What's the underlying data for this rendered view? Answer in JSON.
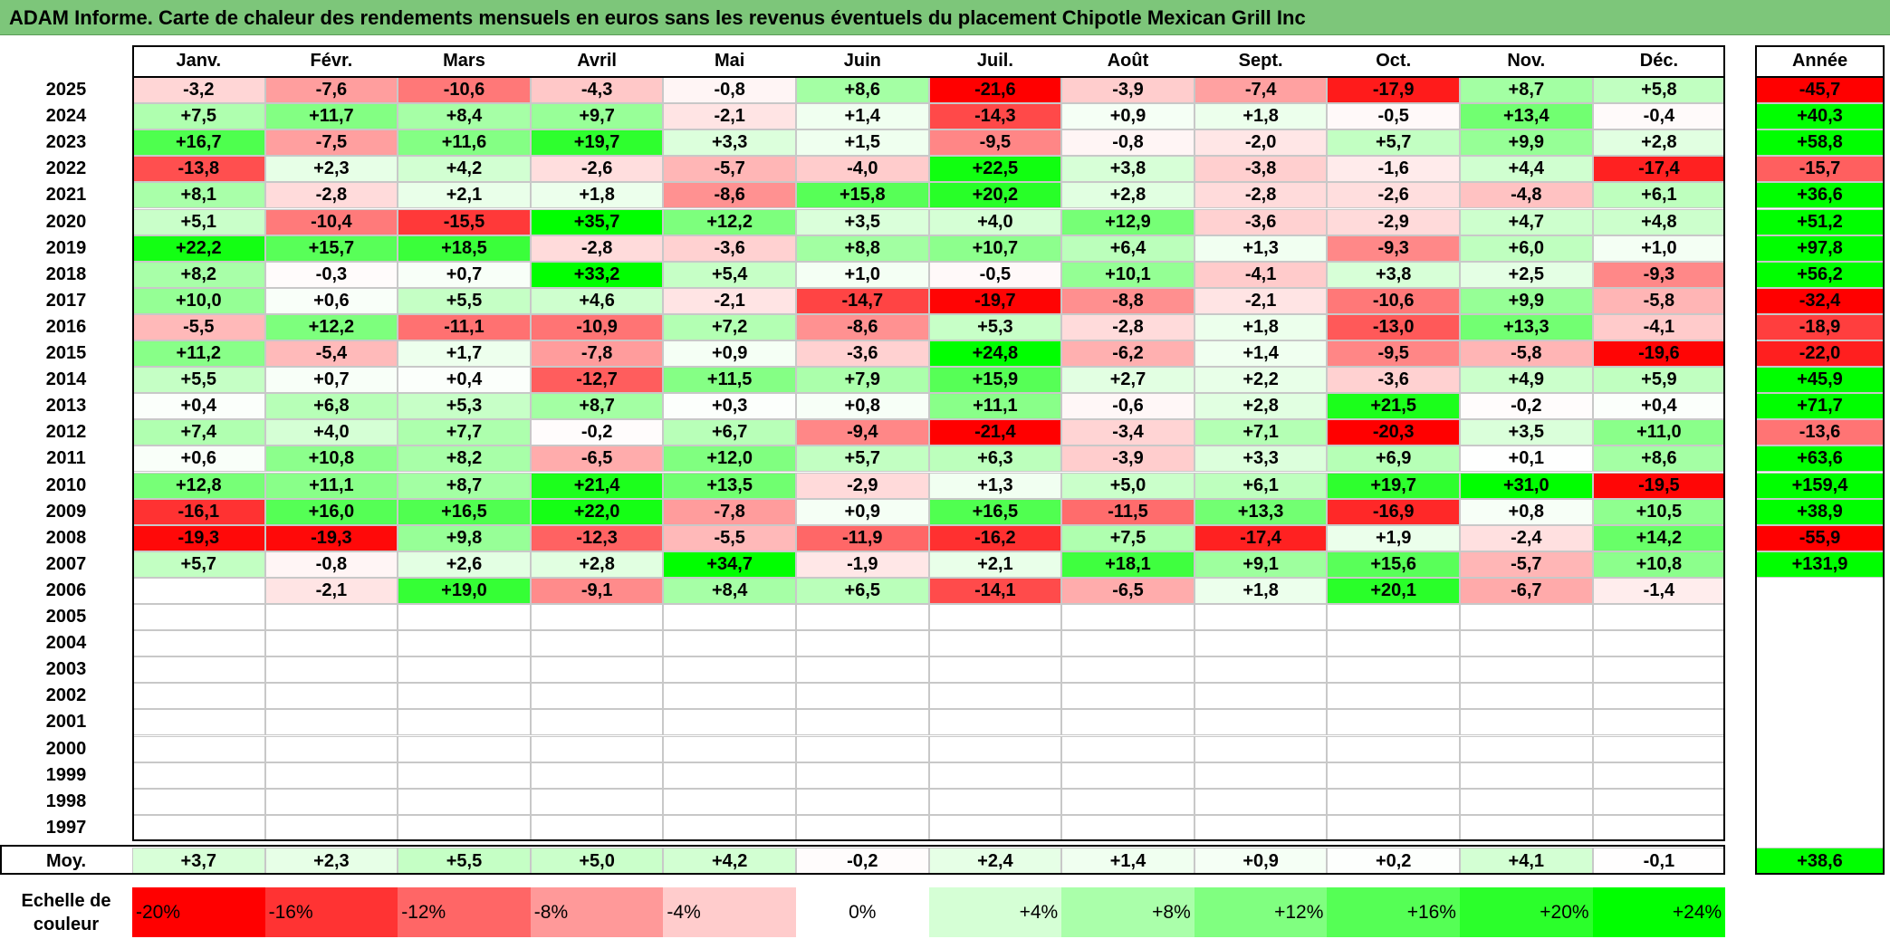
{
  "title": "ADAM Informe. Carte de chaleur des rendements mensuels en euros sans les revenus éventuels du placement Chipotle Mexican Grill Inc",
  "chart_data": {
    "type": "heatmap",
    "title": "ADAM Informe. Carte de chaleur des rendements mensuels en euros sans les revenus éventuels du placement Chipotle Mexican Grill Inc",
    "months": [
      "Janv.",
      "Févr.",
      "Mars",
      "Avril",
      "Mai",
      "Juin",
      "Juil.",
      "Août",
      "Sept.",
      "Oct.",
      "Nov.",
      "Déc."
    ],
    "year_header": "Année",
    "rows": [
      {
        "year": "2025",
        "values": [
          "-3,2",
          "-7,6",
          "-10,6",
          "-4,3",
          "-0,8",
          "+8,6",
          "-21,6",
          "-3,9",
          "-7,4",
          "-17,9",
          "+8,7",
          "+5,8"
        ],
        "annual": "-45,7"
      },
      {
        "year": "2024",
        "values": [
          "+7,5",
          "+11,7",
          "+8,4",
          "+9,7",
          "-2,1",
          "+1,4",
          "-14,3",
          "+0,9",
          "+1,8",
          "-0,5",
          "+13,4",
          "-0,4"
        ],
        "annual": "+40,3"
      },
      {
        "year": "2023",
        "values": [
          "+16,7",
          "-7,5",
          "+11,6",
          "+19,7",
          "+3,3",
          "+1,5",
          "-9,5",
          "-0,8",
          "-2,0",
          "+5,7",
          "+9,9",
          "+2,8"
        ],
        "annual": "+58,8"
      },
      {
        "year": "2022",
        "values": [
          "-13,8",
          "+2,3",
          "+4,2",
          "-2,6",
          "-5,7",
          "-4,0",
          "+22,5",
          "+3,8",
          "-3,8",
          "-1,6",
          "+4,4",
          "-17,4"
        ],
        "annual": "-15,7"
      },
      {
        "year": "2021",
        "values": [
          "+8,1",
          "-2,8",
          "+2,1",
          "+1,8",
          "-8,6",
          "+15,8",
          "+20,2",
          "+2,8",
          "-2,8",
          "-2,6",
          "-4,8",
          "+6,1"
        ],
        "annual": "+36,6"
      },
      {
        "year": "2020",
        "values": [
          "+5,1",
          "-10,4",
          "-15,5",
          "+35,7",
          "+12,2",
          "+3,5",
          "+4,0",
          "+12,9",
          "-3,6",
          "-2,9",
          "+4,7",
          "+4,8"
        ],
        "annual": "+51,2"
      },
      {
        "year": "2019",
        "values": [
          "+22,2",
          "+15,7",
          "+18,5",
          "-2,8",
          "-3,6",
          "+8,8",
          "+10,7",
          "+6,4",
          "+1,3",
          "-9,3",
          "+6,0",
          "+1,0"
        ],
        "annual": "+97,8"
      },
      {
        "year": "2018",
        "values": [
          "+8,2",
          "-0,3",
          "+0,7",
          "+33,2",
          "+5,4",
          "+1,0",
          "-0,5",
          "+10,1",
          "-4,1",
          "+3,8",
          "+2,5",
          "-9,3"
        ],
        "annual": "+56,2"
      },
      {
        "year": "2017",
        "values": [
          "+10,0",
          "+0,6",
          "+5,5",
          "+4,6",
          "-2,1",
          "-14,7",
          "-19,7",
          "-8,8",
          "-2,1",
          "-10,6",
          "+9,9",
          "-5,8"
        ],
        "annual": "-32,4"
      },
      {
        "year": "2016",
        "values": [
          "-5,5",
          "+12,2",
          "-11,1",
          "-10,9",
          "+7,2",
          "-8,6",
          "+5,3",
          "-2,8",
          "+1,8",
          "-13,0",
          "+13,3",
          "-4,1"
        ],
        "annual": "-18,9"
      },
      {
        "year": "2015",
        "values": [
          "+11,2",
          "-5,4",
          "+1,7",
          "-7,8",
          "+0,9",
          "-3,6",
          "+24,8",
          "-6,2",
          "+1,4",
          "-9,5",
          "-5,8",
          "-19,6"
        ],
        "annual": "-22,0"
      },
      {
        "year": "2014",
        "values": [
          "+5,5",
          "+0,7",
          "+0,4",
          "-12,7",
          "+11,5",
          "+7,9",
          "+15,9",
          "+2,7",
          "+2,2",
          "-3,6",
          "+4,9",
          "+5,9"
        ],
        "annual": "+45,9"
      },
      {
        "year": "2013",
        "values": [
          "+0,4",
          "+6,8",
          "+5,3",
          "+8,7",
          "+0,3",
          "+0,8",
          "+11,1",
          "-0,6",
          "+2,8",
          "+21,5",
          "-0,2",
          "+0,4"
        ],
        "annual": "+71,7"
      },
      {
        "year": "2012",
        "values": [
          "+7,4",
          "+4,0",
          "+7,7",
          "-0,2",
          "+6,7",
          "-9,4",
          "-21,4",
          "-3,4",
          "+7,1",
          "-20,3",
          "+3,5",
          "+11,0"
        ],
        "annual": "-13,6"
      },
      {
        "year": "2011",
        "values": [
          "+0,6",
          "+10,8",
          "+8,2",
          "-6,5",
          "+12,0",
          "+5,7",
          "+6,3",
          "-3,9",
          "+3,3",
          "+6,9",
          "+0,1",
          "+8,6"
        ],
        "annual": "+63,6"
      },
      {
        "year": "2010",
        "values": [
          "+12,8",
          "+11,1",
          "+8,7",
          "+21,4",
          "+13,5",
          "-2,9",
          "+1,3",
          "+5,0",
          "+6,1",
          "+19,7",
          "+31,0",
          "-19,5"
        ],
        "annual": "+159,4"
      },
      {
        "year": "2009",
        "values": [
          "-16,1",
          "+16,0",
          "+16,5",
          "+22,0",
          "-7,8",
          "+0,9",
          "+16,5",
          "-11,5",
          "+13,3",
          "-16,9",
          "+0,8",
          "+10,5"
        ],
        "annual": "+38,9"
      },
      {
        "year": "2008",
        "values": [
          "-19,3",
          "-19,3",
          "+9,8",
          "-12,3",
          "-5,5",
          "-11,9",
          "-16,2",
          "+7,5",
          "-17,4",
          "+1,9",
          "-2,4",
          "+14,2"
        ],
        "annual": "-55,9"
      },
      {
        "year": "2007",
        "values": [
          "+5,7",
          "-0,8",
          "+2,6",
          "+2,8",
          "+34,7",
          "-1,9",
          "+2,1",
          "+18,1",
          "+9,1",
          "+15,6",
          "-5,7",
          "+10,8"
        ],
        "annual": "+131,9"
      },
      {
        "year": "2006",
        "values": [
          "",
          "-2,1",
          "+19,0",
          "-9,1",
          "+8,4",
          "+6,5",
          "-14,1",
          "-6,5",
          "+1,8",
          "+20,1",
          "-6,7",
          "-1,4"
        ],
        "annual": ""
      },
      {
        "year": "2005",
        "values": [
          "",
          "",
          "",
          "",
          "",
          "",
          "",
          "",
          "",
          "",
          "",
          ""
        ],
        "annual": ""
      },
      {
        "year": "2004",
        "values": [
          "",
          "",
          "",
          "",
          "",
          "",
          "",
          "",
          "",
          "",
          "",
          ""
        ],
        "annual": ""
      },
      {
        "year": "2003",
        "values": [
          "",
          "",
          "",
          "",
          "",
          "",
          "",
          "",
          "",
          "",
          "",
          ""
        ],
        "annual": ""
      },
      {
        "year": "2002",
        "values": [
          "",
          "",
          "",
          "",
          "",
          "",
          "",
          "",
          "",
          "",
          "",
          ""
        ],
        "annual": ""
      },
      {
        "year": "2001",
        "values": [
          "",
          "",
          "",
          "",
          "",
          "",
          "",
          "",
          "",
          "",
          "",
          ""
        ],
        "annual": ""
      },
      {
        "year": "2000",
        "values": [
          "",
          "",
          "",
          "",
          "",
          "",
          "",
          "",
          "",
          "",
          "",
          ""
        ],
        "annual": ""
      },
      {
        "year": "1999",
        "values": [
          "",
          "",
          "",
          "",
          "",
          "",
          "",
          "",
          "",
          "",
          "",
          ""
        ],
        "annual": ""
      },
      {
        "year": "1998",
        "values": [
          "",
          "",
          "",
          "",
          "",
          "",
          "",
          "",
          "",
          "",
          "",
          ""
        ],
        "annual": ""
      },
      {
        "year": "1997",
        "values": [
          "",
          "",
          "",
          "",
          "",
          "",
          "",
          "",
          "",
          "",
          "",
          ""
        ],
        "annual": ""
      }
    ],
    "average": {
      "label": "Moy.",
      "values": [
        "+3,7",
        "+2,3",
        "+5,5",
        "+5,0",
        "+4,2",
        "-0,2",
        "+2,4",
        "+1,4",
        "+0,9",
        "+0,2",
        "+4,1",
        "-0,1"
      ],
      "annual": "+38,6"
    },
    "scale": {
      "label": "Echelle de couleur",
      "labels": [
        "-20%",
        "-16%",
        "-12%",
        "-8%",
        "-4%",
        "0%",
        "+4%",
        "+8%",
        "+12%",
        "+16%",
        "+20%",
        "+24%"
      ],
      "values": [
        -20,
        -16,
        -12,
        -8,
        -4,
        0,
        4,
        8,
        12,
        16,
        20,
        24
      ]
    },
    "colors": {
      "negative_max": "#ff0000",
      "zero": "#ffffff",
      "positive_max": "#00ff00",
      "title_bar": "#7dc67a"
    }
  }
}
